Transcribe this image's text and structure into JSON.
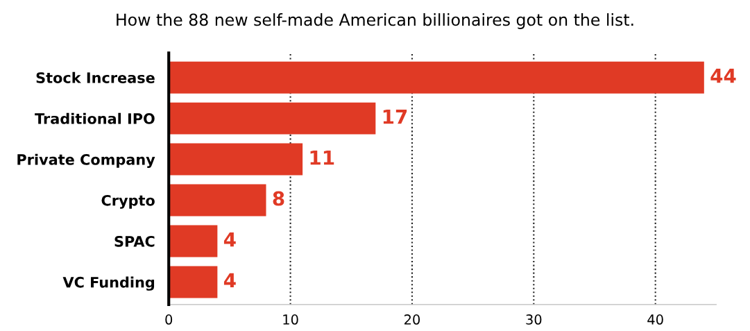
{
  "chart_data": {
    "type": "bar",
    "orientation": "horizontal",
    "title": "How the 88 new self-made American billionaires got on the list.",
    "categories": [
      "Stock Increase",
      "Traditional IPO",
      "Private Company",
      "Crypto",
      "SPAC",
      "VC Funding"
    ],
    "values": [
      44,
      17,
      11,
      8,
      4,
      4
    ],
    "color": "#e03a25",
    "xlim": [
      0,
      45
    ],
    "xticks": [
      0,
      10,
      20,
      30,
      40
    ],
    "grid": "x",
    "data_labels": true
  }
}
